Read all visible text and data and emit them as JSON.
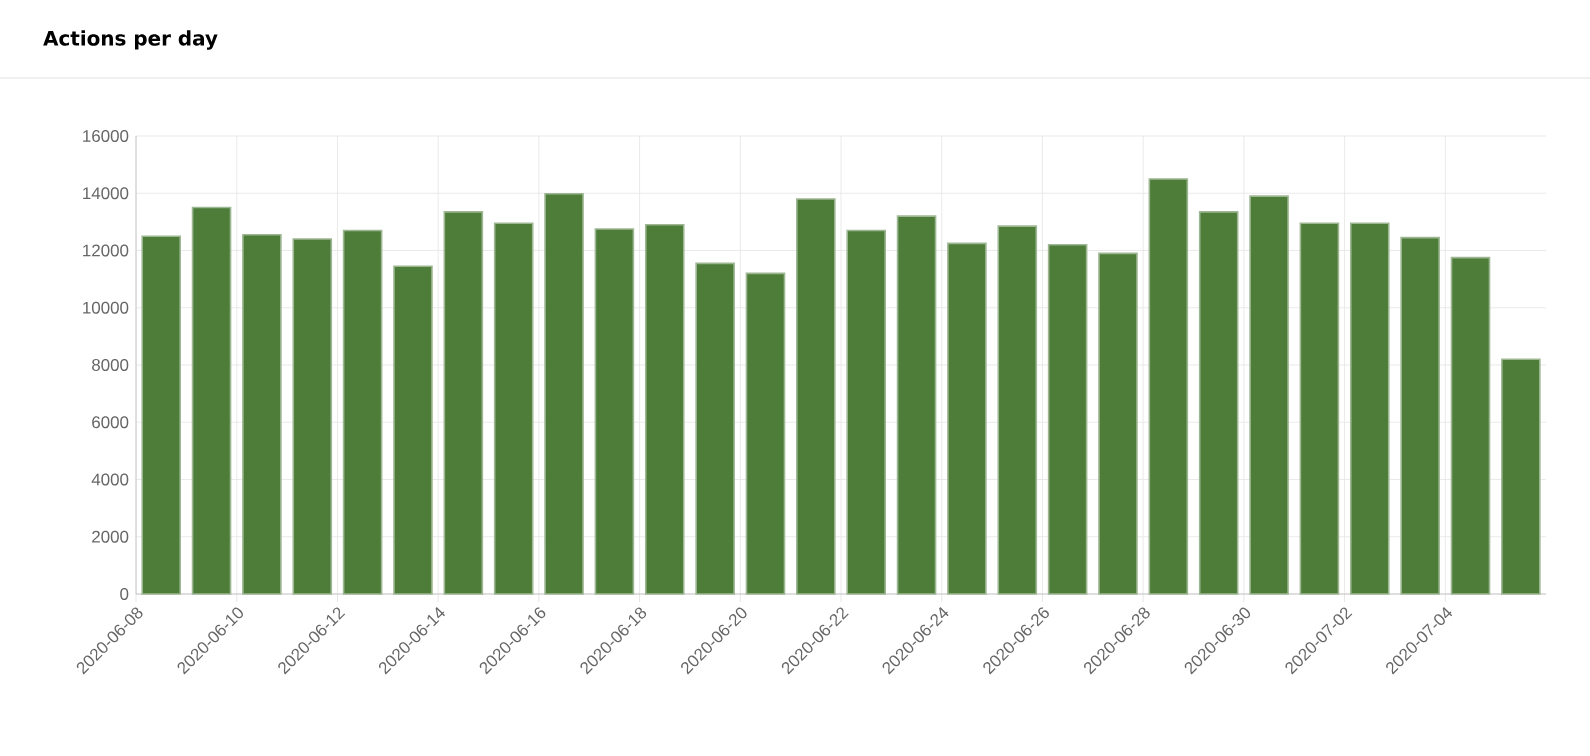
{
  "chart_data": {
    "type": "bar",
    "title": "Actions per day",
    "categories": [
      "2020-06-08",
      null,
      "2020-06-10",
      null,
      "2020-06-12",
      null,
      "2020-06-14",
      null,
      "2020-06-16",
      null,
      "2020-06-18",
      null,
      "2020-06-20",
      null,
      "2020-06-22",
      null,
      "2020-06-24",
      null,
      "2020-06-26",
      null,
      "2020-06-28",
      null,
      "2020-06-30",
      null,
      "2020-07-02",
      null,
      "2020-07-04",
      null
    ],
    "values": [
      12500,
      13500,
      12550,
      12400,
      12700,
      11450,
      13350,
      12950,
      13980,
      12750,
      12900,
      11550,
      11200,
      13800,
      12700,
      13200,
      12250,
      12850,
      12200,
      11900,
      14500,
      13350,
      13900,
      12950,
      12950,
      12450,
      11750,
      8200
    ],
    "color": "#4e7d3a",
    "ylim": [
      0,
      16000
    ],
    "yticks": [
      0,
      2000,
      4000,
      6000,
      8000,
      10000,
      12000,
      14000,
      16000
    ],
    "grid": true
  }
}
